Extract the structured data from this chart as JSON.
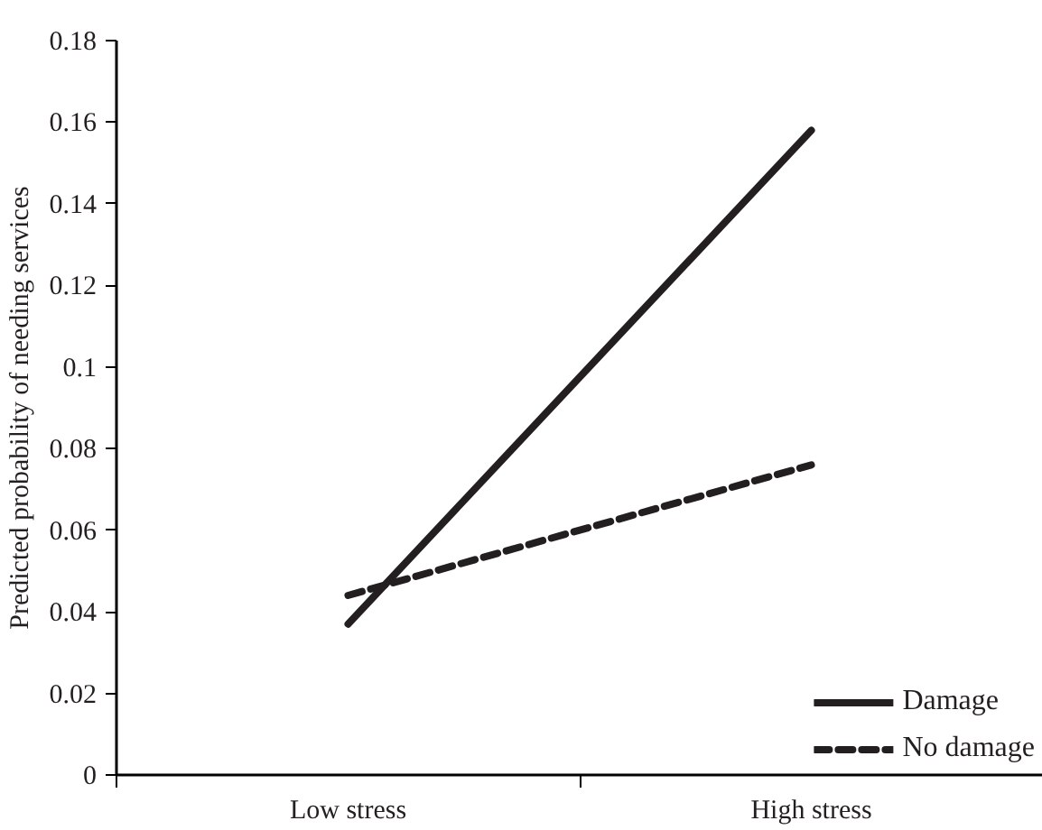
{
  "chart_data": {
    "type": "line",
    "ylabel": "Predicted probability of needing services",
    "categories": [
      "Low stress",
      "High stress"
    ],
    "series": [
      {
        "name": "Damage",
        "color": "#231f20",
        "values": [
          0.037,
          0.158
        ],
        "line_style": "solid"
      },
      {
        "name": "No damage",
        "color": "#231f20",
        "values": [
          0.044,
          0.076
        ],
        "line_style": "dashed"
      }
    ],
    "ylim": [
      0,
      0.18
    ],
    "yticks": [
      0,
      0.02,
      0.04,
      0.06,
      0.08,
      0.1,
      0.12,
      0.14,
      0.16,
      0.18
    ],
    "grid": false,
    "legend": "bottom right",
    "marker": "none"
  }
}
